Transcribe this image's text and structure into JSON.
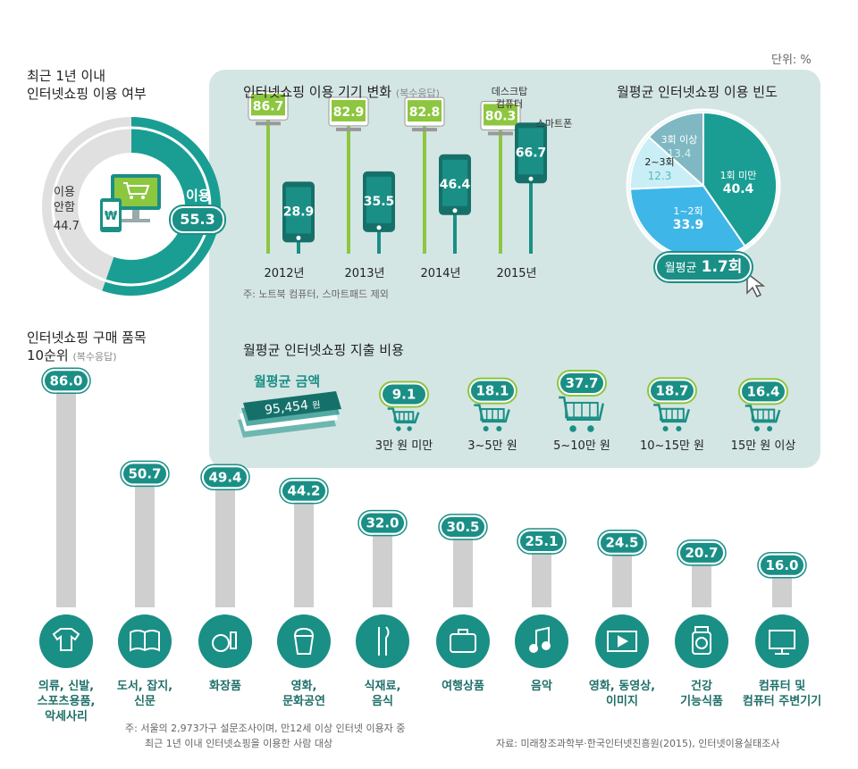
{
  "unit_label": "단위: %",
  "usage": {
    "title_line1": "최근 1년 이내",
    "title_line2": "인터넷쇼핑 이용 여부",
    "yes_label": "이용",
    "yes_value": "55.3",
    "no_label_1": "이용",
    "no_label_2": "안함",
    "no_value": "44.7"
  },
  "device_change": {
    "title": "인터넷쇼핑 이용 기기 변화",
    "title_note": "(복수응답)",
    "legend_desktop_1": "데스크탑",
    "legend_desktop_2": "컴퓨터",
    "legend_smartphone": "스마트폰",
    "note": "주: 노트북 컴퓨터, 스마트패드 제외"
  },
  "frequency": {
    "title": "월평균 인터넷쇼핑 이용 빈도",
    "average_label": "월평균",
    "average_value": "1.7회"
  },
  "spending": {
    "title": "월평균 인터넷쇼핑 지출 비용",
    "average_label": "월평균 금액",
    "average_value": "95,454",
    "average_unit": "원"
  },
  "top10": {
    "title_line1": "인터넷쇼핑 구매 품목",
    "title_line2": "10순위",
    "title_note": "(복수응답)"
  },
  "footnote_line1": "주: 서울의 2,973가구 설문조사이며, 만12세 이상 인터넷 이용자 중",
  "footnote_line2": "최근 1년 이내 인터넷쇼핑을 이용한 사람 대상",
  "source": "자료: 미래창조과학부·한국인터넷진흥원(2015), 인터넷이용실태조사",
  "colors": {
    "teal": "#1a8f86",
    "teal_dark": "#16706a",
    "green": "#8dc63f",
    "panel": "#d4e6e4",
    "gray": "#cfcfcf",
    "sky": "#3fb6e8"
  },
  "chart_data": [
    {
      "type": "pie",
      "title": "최근 1년 이내 인터넷쇼핑 이용 여부",
      "categories": [
        "이용",
        "이용 안함"
      ],
      "values": [
        55.3,
        44.7
      ]
    },
    {
      "type": "bar",
      "title": "인터넷쇼핑 이용 기기 변화",
      "categories": [
        "2012년",
        "2013년",
        "2014년",
        "2015년"
      ],
      "series": [
        {
          "name": "데스크탑 컴퓨터",
          "values": [
            86.7,
            82.9,
            82.8,
            80.3
          ]
        },
        {
          "name": "스마트폰",
          "values": [
            28.9,
            35.5,
            46.4,
            66.7
          ]
        }
      ]
    },
    {
      "type": "pie",
      "title": "월평균 인터넷쇼핑 이용 빈도",
      "categories": [
        "1회 미만",
        "1~2회",
        "2~3회",
        "3회 이상"
      ],
      "values": [
        40.4,
        33.9,
        12.3,
        13.4
      ]
    },
    {
      "type": "bar",
      "title": "월평균 인터넷쇼핑 지출 비용",
      "categories": [
        "3만 원 미만",
        "3~5만 원",
        "5~10만 원",
        "10~15만 원",
        "15만 원 이상"
      ],
      "values": [
        9.1,
        18.1,
        37.7,
        18.7,
        16.4
      ]
    },
    {
      "type": "bar",
      "title": "인터넷쇼핑 구매 품목 10순위",
      "categories": [
        [
          "의류, 신발,",
          "스포츠용품,",
          "악세사리"
        ],
        [
          "도서, 잡지,",
          "신문"
        ],
        [
          "화장품"
        ],
        [
          "영화,",
          "문화공연"
        ],
        [
          "식재료,",
          "음식"
        ],
        [
          "여행상품"
        ],
        [
          "음악"
        ],
        [
          "영화, 동영상,",
          "이미지"
        ],
        [
          "건강",
          "기능식품"
        ],
        [
          "컴퓨터 및",
          "컴퓨터 주변기기"
        ]
      ],
      "icons": [
        "clothes-icon",
        "book-icon",
        "cosmetics-icon",
        "popcorn-icon",
        "utensils-icon",
        "suitcase-icon",
        "music-note-icon",
        "video-player-icon",
        "supplement-bottle-icon",
        "computer-monitor-icon"
      ],
      "values": [
        86.0,
        50.7,
        49.4,
        44.2,
        32.0,
        30.5,
        25.1,
        24.5,
        20.7,
        16.0
      ]
    }
  ]
}
